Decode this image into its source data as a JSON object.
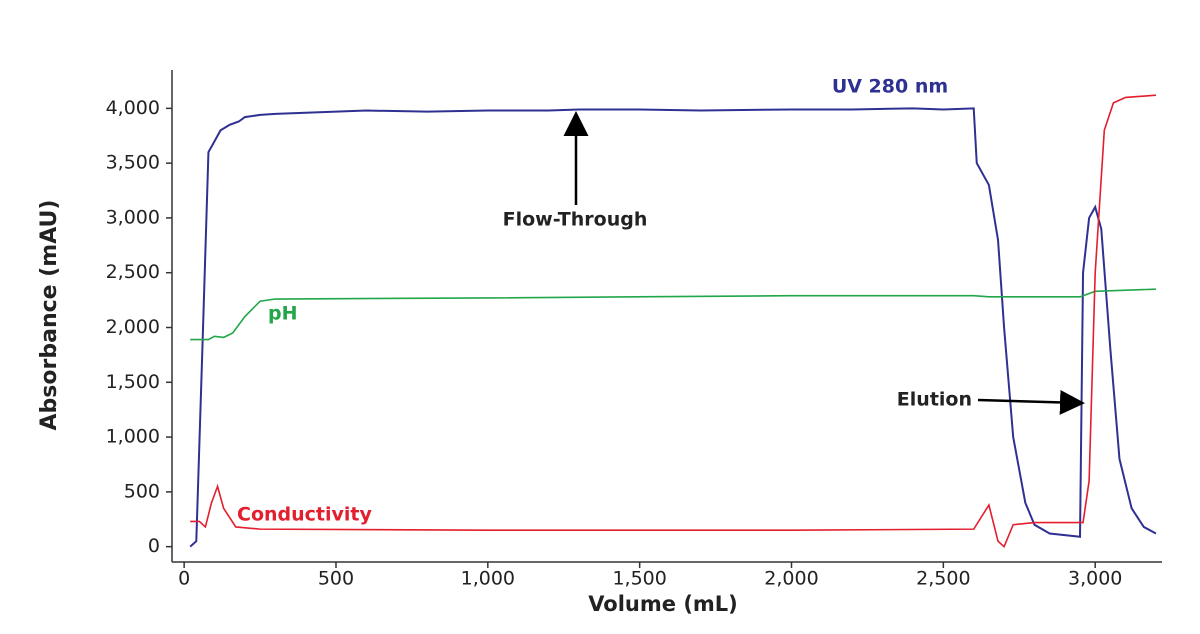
{
  "chart_data": {
    "type": "line",
    "x_label": "Volume (mL)",
    "y_label": "Absorbance (mAU)",
    "xlim": [
      -40,
      3220
    ],
    "ylim": [
      -140,
      4350
    ],
    "xticks": [
      0,
      500,
      {
        "value": 1000,
        "label": "1,000"
      },
      {
        "value": 1500,
        "label": "1,500"
      },
      {
        "value": 2000,
        "label": "2,000"
      },
      {
        "value": 2500,
        "label": "2,500"
      },
      {
        "value": 3000,
        "label": "3,000"
      }
    ],
    "yticks": [
      0,
      500,
      {
        "value": 1000,
        "label": "1,000"
      },
      {
        "value": 1500,
        "label": "1,500"
      },
      {
        "value": 2000,
        "label": "2,000"
      },
      {
        "value": 2500,
        "label": "2,500"
      },
      {
        "value": 3000,
        "label": "3,000"
      },
      {
        "value": 3500,
        "label": "3,500"
      },
      {
        "value": 4000,
        "label": "4,000"
      }
    ],
    "grid": false,
    "series": [
      {
        "name": "UV 280 nm",
        "color": "#2e3192",
        "x": [
          20,
          40,
          60,
          80,
          100,
          120,
          150,
          180,
          200,
          250,
          300,
          400,
          500,
          600,
          800,
          1000,
          1200,
          1300,
          1500,
          1700,
          2000,
          2200,
          2400,
          2500,
          2600,
          2610,
          2650,
          2680,
          2700,
          2730,
          2770,
          2800,
          2850,
          2950,
          2960,
          2980,
          3000,
          3020,
          3050,
          3080,
          3120,
          3160,
          3200
        ],
        "values": [
          0,
          50,
          1800,
          3600,
          3700,
          3800,
          3850,
          3880,
          3920,
          3940,
          3950,
          3960,
          3970,
          3980,
          3970,
          3980,
          3980,
          3990,
          3990,
          3980,
          3990,
          3990,
          4000,
          3990,
          4000,
          3500,
          3300,
          2800,
          2000,
          1000,
          400,
          200,
          120,
          90,
          2500,
          3000,
          3100,
          2900,
          1800,
          800,
          350,
          180,
          120
        ]
      },
      {
        "name": "pH",
        "color": "#22a64a",
        "x": [
          20,
          80,
          100,
          130,
          160,
          200,
          250,
          300,
          1000,
          2000,
          2600,
          2650,
          2950,
          3000,
          3200
        ],
        "values": [
          1890,
          1890,
          1920,
          1910,
          1950,
          2100,
          2240,
          2260,
          2270,
          2290,
          2290,
          2280,
          2280,
          2330,
          2350
        ]
      },
      {
        "name": "Conductivity",
        "color": "#e31e2d",
        "x": [
          20,
          50,
          70,
          90,
          110,
          130,
          170,
          250,
          1000,
          2000,
          2600,
          2650,
          2680,
          2700,
          2730,
          2800,
          2960,
          2980,
          3000,
          3030,
          3060,
          3100,
          3200
        ],
        "values": [
          230,
          230,
          180,
          400,
          550,
          350,
          180,
          160,
          150,
          150,
          160,
          380,
          50,
          0,
          200,
          220,
          220,
          600,
          2500,
          3800,
          4050,
          4100,
          4120
        ]
      }
    ],
    "annotations": [
      "Flow-Through",
      "Elution"
    ]
  }
}
